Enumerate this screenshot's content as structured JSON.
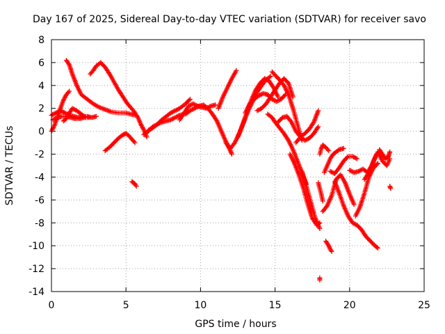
{
  "chart_data": {
    "type": "scatter",
    "title": "Day 167 of 2025, Sidereal Day-to-day VTEC variation (SDTVAR) for receiver savo",
    "xlabel": "GPS time / hours",
    "ylabel": "SDTVAR / TECUs",
    "xlim": [
      0,
      25
    ],
    "ylim": [
      -14,
      8
    ],
    "xticks": [
      0,
      5,
      10,
      15,
      20,
      25
    ],
    "yticks": [
      8,
      6,
      4,
      2,
      0,
      -2,
      -4,
      -6,
      -8,
      -10,
      -12,
      -14
    ],
    "grid": true,
    "marker": "+",
    "color": "#ff0000",
    "segments": [
      {
        "x": [
          0.0,
          0.3,
          0.6,
          0.9,
          1.2,
          1.5,
          1.8,
          2.1,
          2.4,
          2.7,
          3.0
        ],
        "y": [
          1.4,
          1.6,
          1.8,
          1.6,
          1.4,
          1.3,
          1.2,
          1.3,
          1.3,
          1.2,
          1.3
        ]
      },
      {
        "x": [
          0.0,
          0.2,
          0.4,
          0.6,
          0.8,
          1.0,
          1.2
        ],
        "y": [
          0.0,
          0.5,
          1.2,
          2.0,
          2.7,
          3.2,
          3.5
        ]
      },
      {
        "x": [
          0.1,
          0.4,
          0.7,
          1.0,
          1.3,
          1.6,
          1.9,
          2.2,
          2.5
        ],
        "y": [
          1.0,
          1.2,
          1.3,
          1.3,
          1.2,
          1.1,
          1.1,
          1.2,
          1.2
        ]
      },
      {
        "x": [
          0.8,
          1.0,
          1.2,
          1.4,
          1.7,
          2.0,
          2.3
        ],
        "y": [
          0.9,
          1.1,
          1.6,
          2.0,
          1.8,
          1.5,
          1.2
        ]
      },
      {
        "x": [
          1.0,
          1.2,
          1.4,
          1.7,
          2.0,
          2.4,
          2.8,
          3.2,
          3.6,
          4.0,
          4.5,
          5.0,
          5.6
        ],
        "y": [
          6.2,
          5.8,
          5.0,
          4.0,
          3.2,
          2.8,
          2.4,
          2.1,
          1.9,
          1.7,
          1.6,
          1.6,
          1.4
        ]
      },
      {
        "x": [
          2.6,
          2.8,
          3.0,
          3.3,
          3.6,
          3.9,
          4.2,
          4.5,
          4.8,
          5.1,
          5.5,
          5.8,
          6.0,
          6.2,
          6.4
        ],
        "y": [
          5.0,
          5.3,
          5.7,
          6.0,
          5.6,
          5.0,
          4.3,
          3.6,
          3.0,
          2.4,
          1.8,
          1.2,
          0.6,
          0.1,
          -0.5
        ]
      },
      {
        "x": [
          3.6,
          3.9,
          4.2,
          4.5,
          4.8,
          5.0,
          5.2,
          5.4,
          5.6
        ],
        "y": [
          -1.7,
          -1.4,
          -1.0,
          -0.6,
          -0.3,
          -0.2,
          -0.4,
          -0.7,
          -1.0
        ]
      },
      {
        "x": [
          5.4,
          5.5,
          5.6,
          5.7
        ],
        "y": [
          -4.4,
          -4.5,
          -4.6,
          -4.8
        ]
      },
      {
        "x": [
          6.2,
          6.5,
          6.8,
          7.1,
          7.4,
          7.7,
          8.0,
          8.3,
          8.6,
          8.9
        ],
        "y": [
          -0.3,
          0.0,
          0.4,
          0.6,
          0.8,
          0.9,
          1.0,
          1.2,
          1.4,
          1.5
        ]
      },
      {
        "x": [
          6.5,
          6.8,
          7.1,
          7.4,
          7.7,
          8.0,
          8.3,
          8.6,
          9.0,
          9.3
        ],
        "y": [
          0.1,
          0.3,
          0.6,
          1.0,
          1.3,
          1.6,
          1.8,
          2.0,
          2.4,
          2.8
        ]
      },
      {
        "x": [
          9.0,
          9.3,
          9.6,
          9.9,
          10.2,
          10.5,
          10.8,
          11.1,
          11.4,
          11.7,
          12.0,
          12.1
        ],
        "y": [
          1.5,
          1.8,
          2.0,
          2.2,
          2.3,
          2.0,
          1.5,
          0.9,
          0.0,
          -0.9,
          -1.7,
          -2.0
        ]
      },
      {
        "x": [
          8.6,
          8.9,
          9.2,
          9.5,
          9.8,
          10.1,
          10.4,
          10.7,
          11.0
        ],
        "y": [
          1.0,
          1.6,
          2.2,
          2.4,
          2.2,
          2.1,
          2.0,
          2.2,
          2.3
        ]
      },
      {
        "x": [
          11.2,
          11.5,
          11.8,
          12.1,
          12.4
        ],
        "y": [
          2.0,
          3.0,
          3.8,
          4.6,
          5.3
        ]
      },
      {
        "x": [
          11.7,
          12.0,
          12.3,
          12.6,
          12.9,
          13.2,
          13.5,
          13.8,
          14.1,
          14.4,
          14.7
        ],
        "y": [
          -1.0,
          -1.5,
          -1.0,
          -0.2,
          0.8,
          1.8,
          2.6,
          3.4,
          4.0,
          4.5,
          4.8
        ]
      },
      {
        "x": [
          12.5,
          12.8,
          13.1,
          13.4,
          13.7,
          14.0,
          14.3,
          14.6,
          14.9,
          15.2
        ],
        "y": [
          -0.5,
          0.5,
          1.6,
          2.7,
          3.6,
          4.2,
          4.6,
          4.4,
          3.8,
          3.0
        ]
      },
      {
        "x": [
          13.0,
          13.3,
          13.6,
          13.9,
          14.2,
          14.5,
          14.8,
          15.1,
          15.4,
          15.7
        ],
        "y": [
          1.6,
          2.4,
          2.8,
          3.1,
          3.3,
          3.2,
          2.8,
          2.6,
          2.8,
          3.2
        ]
      },
      {
        "x": [
          13.8,
          14.1,
          14.4,
          14.7,
          15.0,
          15.3,
          15.6,
          15.9,
          16.2
        ],
        "y": [
          1.8,
          2.0,
          2.4,
          3.0,
          3.6,
          4.2,
          4.6,
          4.2,
          3.0
        ]
      },
      {
        "x": [
          14.5,
          14.8,
          15.0,
          15.3,
          15.6,
          15.9,
          16.2,
          16.5,
          16.8,
          17.1
        ],
        "y": [
          1.5,
          1.2,
          0.8,
          0.3,
          -0.2,
          -0.8,
          -1.6,
          -2.6,
          -3.6,
          -4.6
        ]
      },
      {
        "x": [
          14.8,
          15.0,
          15.3,
          15.6,
          15.9,
          16.2,
          16.5,
          16.8
        ],
        "y": [
          5.2,
          4.9,
          4.5,
          4.0,
          3.2,
          2.0,
          0.6,
          -0.8
        ]
      },
      {
        "x": [
          15.2,
          15.5,
          15.8,
          16.1,
          16.4,
          16.7,
          17.0,
          17.3,
          17.6,
          17.9
        ],
        "y": [
          0.8,
          1.2,
          1.3,
          0.8,
          0.0,
          -0.5,
          -0.8,
          -0.6,
          -0.2,
          0.4
        ]
      },
      {
        "x": [
          16.4,
          16.7,
          17.0,
          17.3,
          17.6,
          17.9
        ],
        "y": [
          -1.0,
          -0.5,
          -0.2,
          0.2,
          0.8,
          1.8
        ]
      },
      {
        "x": [
          16.0,
          16.3,
          16.6,
          16.9,
          17.2,
          17.5,
          17.8,
          18.0
        ],
        "y": [
          -2.0,
          -2.8,
          -3.8,
          -5.0,
          -6.4,
          -7.6,
          -8.2,
          -8.0
        ]
      },
      {
        "x": [
          16.8,
          17.1,
          17.4,
          17.7,
          18.0
        ],
        "y": [
          -3.5,
          -4.8,
          -6.2,
          -7.6,
          -8.5
        ]
      },
      {
        "x": [
          17.9,
          18.0,
          18.1,
          18.2
        ],
        "y": [
          -4.5,
          -5.0,
          -5.5,
          -6.1
        ]
      },
      {
        "x": [
          18.0,
          18.1,
          18.2,
          18.4,
          18.6
        ],
        "y": [
          -2.0,
          -1.5,
          -1.2,
          -1.4,
          -1.7
        ]
      },
      {
        "x": [
          18.2,
          18.5,
          18.8,
          19.1,
          19.4,
          19.7,
          20.0,
          20.3
        ],
        "y": [
          -7.0,
          -6.5,
          -5.6,
          -4.2,
          -3.8,
          -4.5,
          -5.5,
          -6.4
        ]
      },
      {
        "x": [
          18.3,
          18.5,
          18.7,
          18.9,
          19.1,
          19.3,
          19.6
        ],
        "y": [
          -3.6,
          -3.0,
          -2.4,
          -2.0,
          -1.8,
          -1.6,
          -1.5
        ]
      },
      {
        "x": [
          18.7,
          19.0,
          19.3,
          19.6,
          19.9,
          20.2,
          20.5
        ],
        "y": [
          -3.5,
          -3.7,
          -3.2,
          -2.6,
          -2.2,
          -2.2,
          -2.4
        ]
      },
      {
        "x": [
          18.4,
          18.5,
          18.6,
          18.7,
          18.8
        ],
        "y": [
          -9.6,
          -9.8,
          -10.0,
          -10.3,
          -10.5
        ]
      },
      {
        "x": [
          18.0,
          18.0
        ],
        "y": [
          -12.8,
          -13.0
        ]
      },
      {
        "x": [
          19.0,
          19.3,
          19.6,
          19.9,
          20.2,
          20.5,
          20.8,
          21.1,
          21.4,
          21.7,
          21.9
        ],
        "y": [
          -4.4,
          -5.4,
          -6.5,
          -7.4,
          -8.0,
          -8.2,
          -8.6,
          -9.2,
          -9.6,
          -10.0,
          -10.2
        ]
      },
      {
        "x": [
          20.0,
          20.3,
          20.6,
          20.9,
          21.2,
          21.5,
          21.8
        ],
        "y": [
          -3.4,
          -3.6,
          -3.5,
          -3.3,
          -3.6,
          -3.0,
          -2.0
        ]
      },
      {
        "x": [
          20.4,
          20.7,
          21.0,
          21.3,
          21.6,
          21.9
        ],
        "y": [
          -7.4,
          -6.6,
          -5.4,
          -4.0,
          -3.2,
          -2.8
        ]
      },
      {
        "x": [
          21.0,
          21.3,
          21.6,
          21.9,
          22.2,
          22.5,
          22.7
        ],
        "y": [
          -4.2,
          -3.6,
          -2.6,
          -1.8,
          -2.6,
          -3.0,
          -2.4
        ]
      },
      {
        "x": [
          22.0,
          22.2,
          22.4,
          22.6,
          22.7
        ],
        "y": [
          -1.6,
          -2.0,
          -2.4,
          -2.2,
          -1.8
        ]
      },
      {
        "x": [
          22.7,
          22.75
        ],
        "y": [
          -4.8,
          -5.0
        ]
      }
    ]
  }
}
